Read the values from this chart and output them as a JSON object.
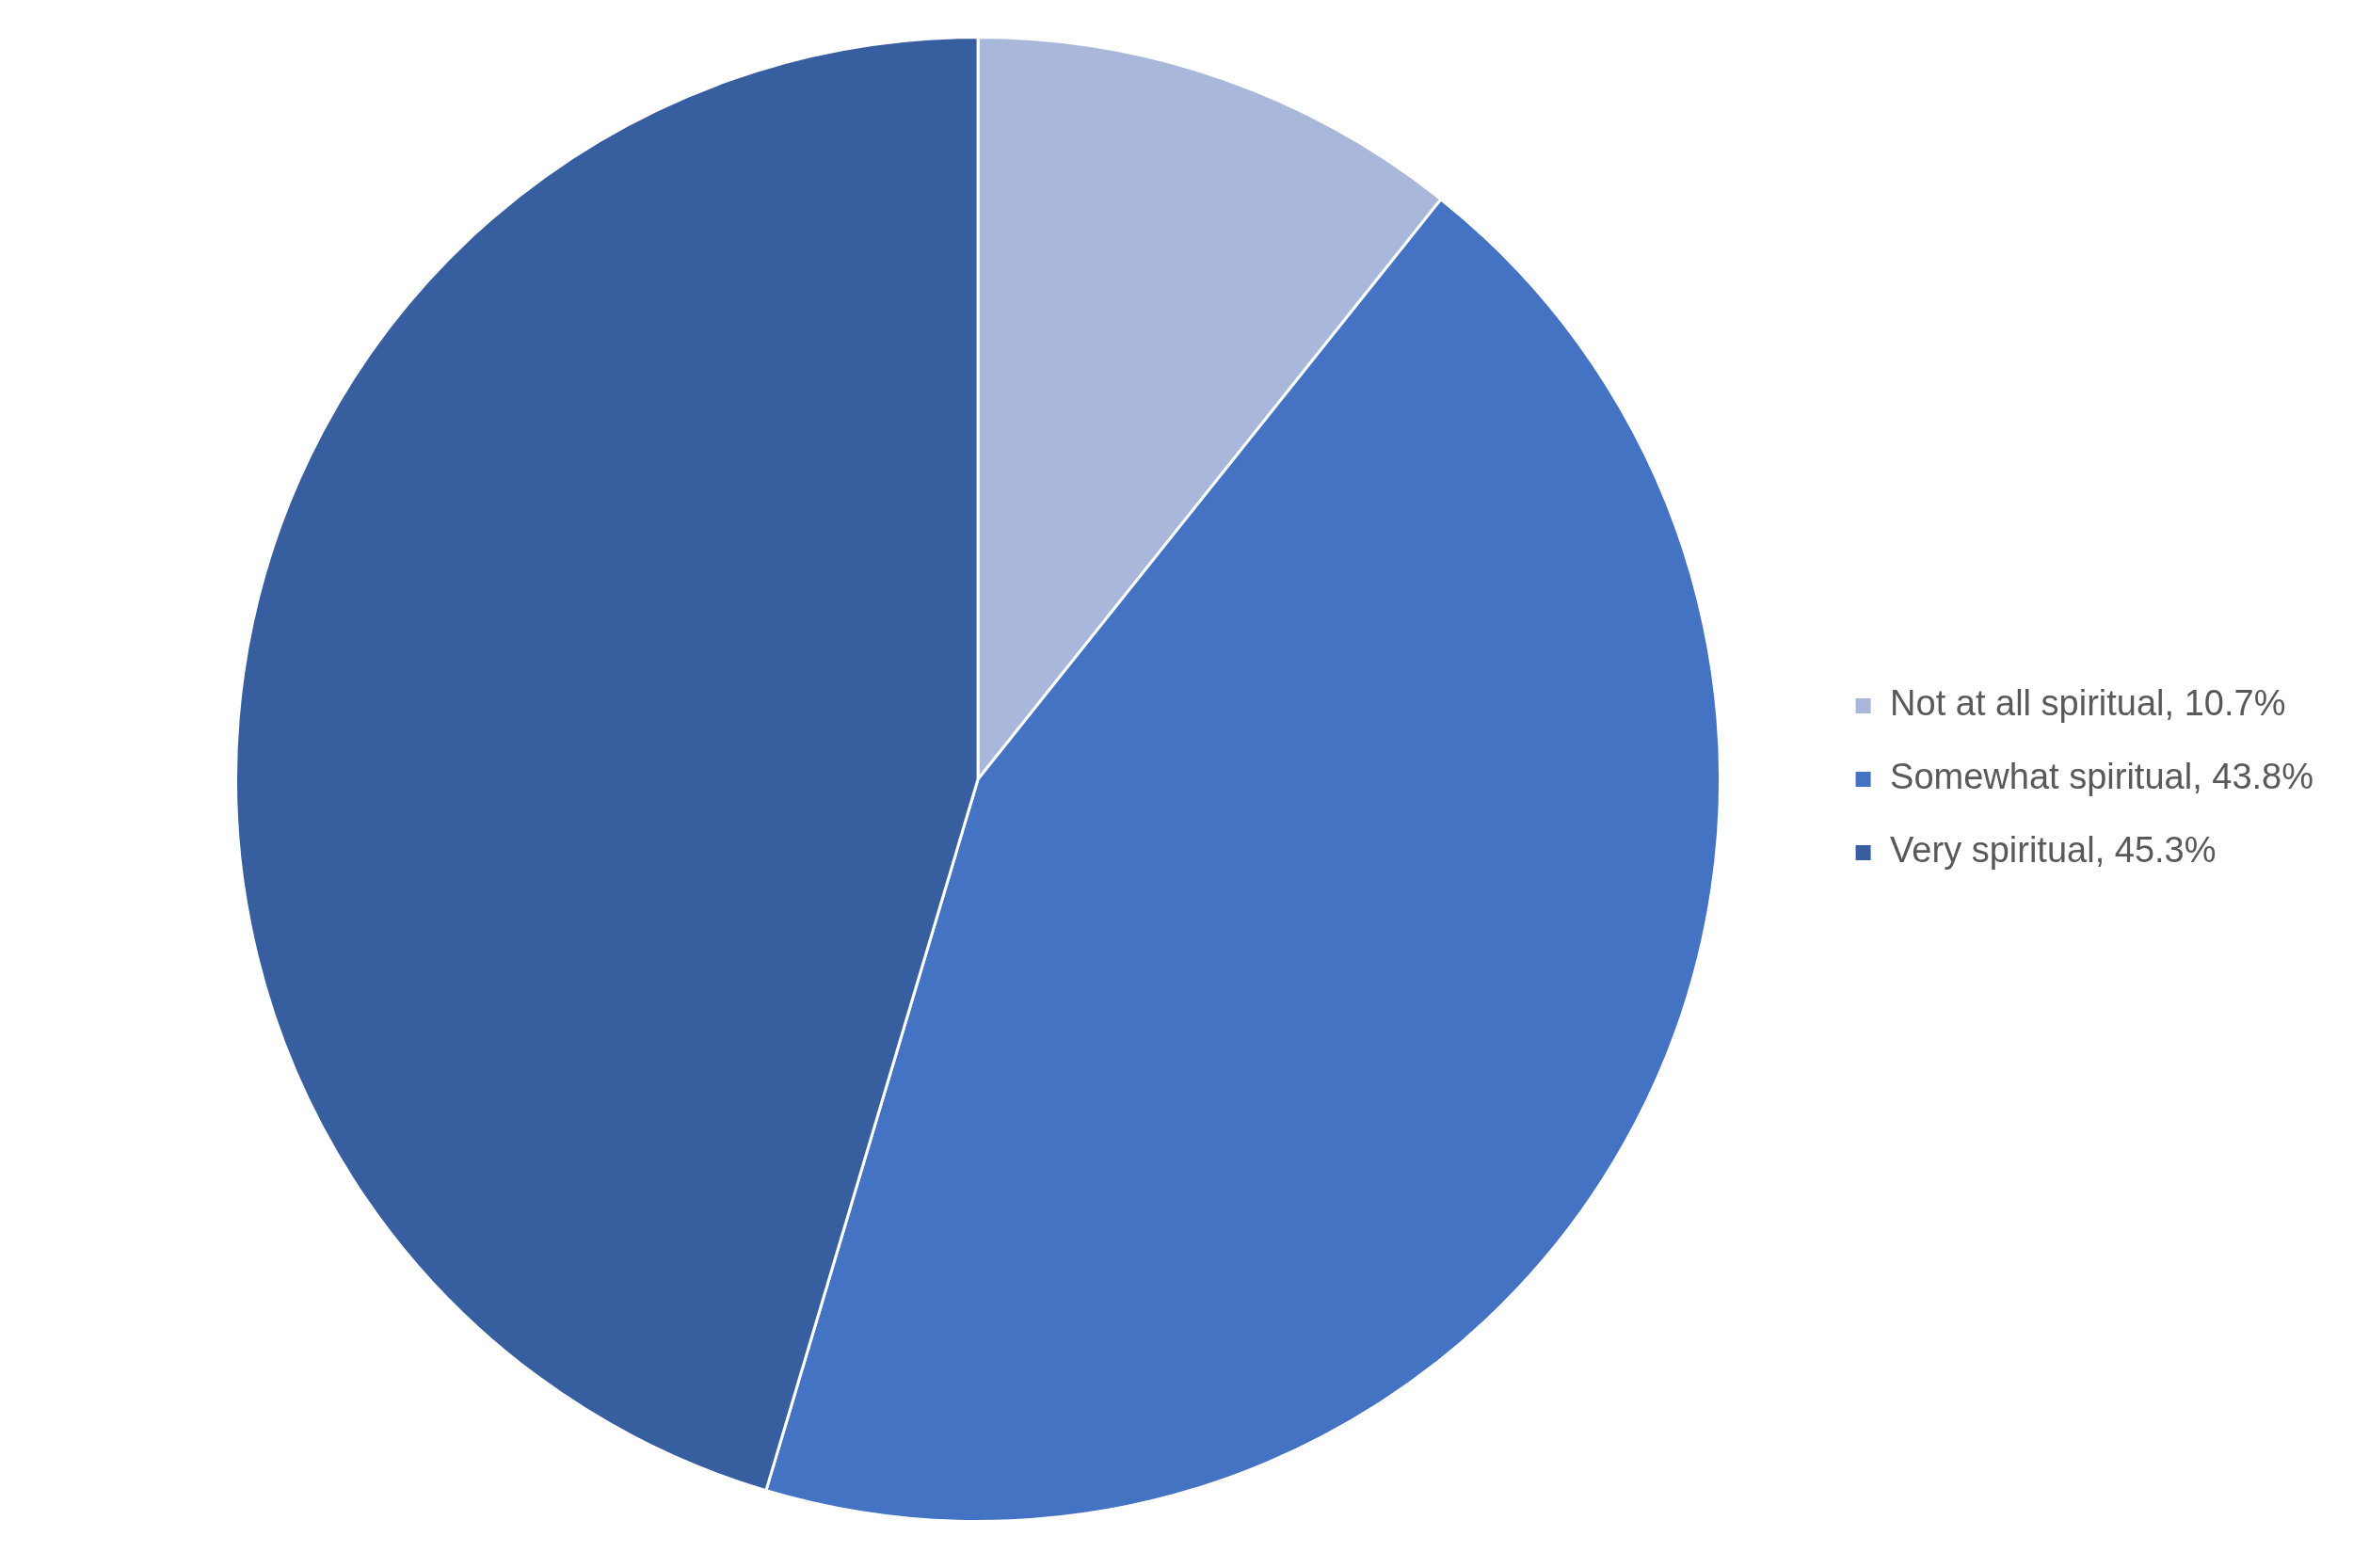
{
  "chart_data": {
    "type": "pie",
    "categories": [
      "Not at all spiritual, 10.7%",
      "Somewhat spiritual, 43.8%",
      "Very spiritual, 45.3%"
    ],
    "values": [
      10.7,
      43.8,
      45.3
    ],
    "colors": [
      "#a9b7da",
      "#4473c4",
      "#375e9f"
    ],
    "legend": "right"
  }
}
